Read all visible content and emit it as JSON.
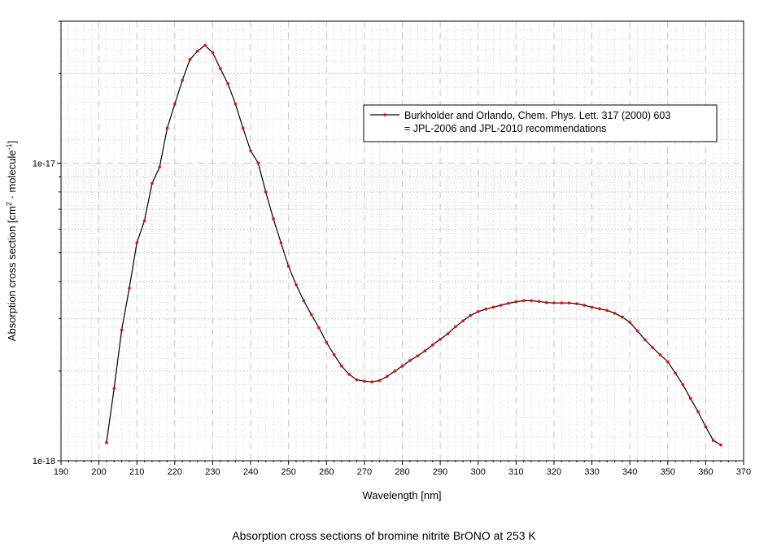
{
  "caption": "Absorption cross sections of bromine nitrite BrONO at 253 K",
  "chart_data": {
    "type": "line",
    "xlabel": "Wavelength [nm]",
    "ylabel_main": "Absorption cross section [cm",
    "ylabel_sup1": "2",
    "ylabel_mid": " · molecule",
    "ylabel_sup2": "-1",
    "ylabel_end": "]",
    "xlim": [
      190,
      370
    ],
    "ylim": [
      1e-18,
      3e-17
    ],
    "y_scale": "log",
    "x_ticks": [
      "190",
      "200",
      "210",
      "220",
      "230",
      "240",
      "250",
      "260",
      "270",
      "280",
      "290",
      "300",
      "310",
      "320",
      "330",
      "340",
      "350",
      "360",
      "370"
    ],
    "y_tick_labels": [
      "1e-18",
      "1e-17"
    ],
    "grid": true,
    "legend_position": "upper-right",
    "line_color": "#000000",
    "marker_color": "#ff0000",
    "series": [
      {
        "legend_line1": "Burkholder and Orlando, Chem. Phys. Lett. 317 (2000) 603",
        "legend_line2": "= JPL-2006 and JPL-2010 recommendations",
        "x": [
          202,
          204,
          206,
          208,
          210,
          212,
          214,
          216,
          218,
          220,
          222,
          224,
          226,
          228,
          230,
          232,
          234,
          236,
          238,
          240,
          242,
          244,
          246,
          248,
          250,
          252,
          254,
          256,
          258,
          260,
          262,
          264,
          266,
          268,
          270,
          272,
          274,
          276,
          278,
          280,
          282,
          284,
          286,
          288,
          290,
          292,
          294,
          296,
          298,
          300,
          302,
          304,
          306,
          308,
          310,
          312,
          314,
          316,
          318,
          320,
          322,
          324,
          326,
          328,
          330,
          332,
          334,
          336,
          338,
          340,
          342,
          344,
          346,
          348,
          350,
          352,
          354,
          356,
          358,
          360,
          362,
          364
        ],
        "y": [
          1.15e-18,
          1.75e-18,
          2.75e-18,
          3.8e-18,
          5.4e-18,
          6.4e-18,
          8.55e-18,
          9.7e-18,
          1.31e-17,
          1.58e-17,
          1.9e-17,
          2.23e-17,
          2.38e-17,
          2.49e-17,
          2.35e-17,
          2.08e-17,
          1.85e-17,
          1.58e-17,
          1.31e-17,
          1.1e-17,
          1e-17,
          8e-18,
          6.5e-18,
          5.4e-18,
          4.5e-18,
          3.9e-18,
          3.45e-18,
          3.1e-18,
          2.8e-18,
          2.5e-18,
          2.27e-18,
          2.08e-18,
          1.95e-18,
          1.87e-18,
          1.85e-18,
          1.84e-18,
          1.86e-18,
          1.92e-18,
          2e-18,
          2.08e-18,
          2.17e-18,
          2.25e-18,
          2.34e-18,
          2.45e-18,
          2.56e-18,
          2.67e-18,
          2.82e-18,
          2.95e-18,
          3.08e-18,
          3.17e-18,
          3.23e-18,
          3.28e-18,
          3.33e-18,
          3.38e-18,
          3.42e-18,
          3.45e-18,
          3.45e-18,
          3.43e-18,
          3.4e-18,
          3.39e-18,
          3.39e-18,
          3.39e-18,
          3.37e-18,
          3.33e-18,
          3.28e-18,
          3.24e-18,
          3.2e-18,
          3.13e-18,
          3.04e-18,
          2.92e-18,
          2.73e-18,
          2.55e-18,
          2.4e-18,
          2.27e-18,
          2.15e-18,
          1.97e-18,
          1.8e-18,
          1.62e-18,
          1.46e-18,
          1.3e-18,
          1.17e-18,
          1.13e-18
        ]
      }
    ]
  }
}
